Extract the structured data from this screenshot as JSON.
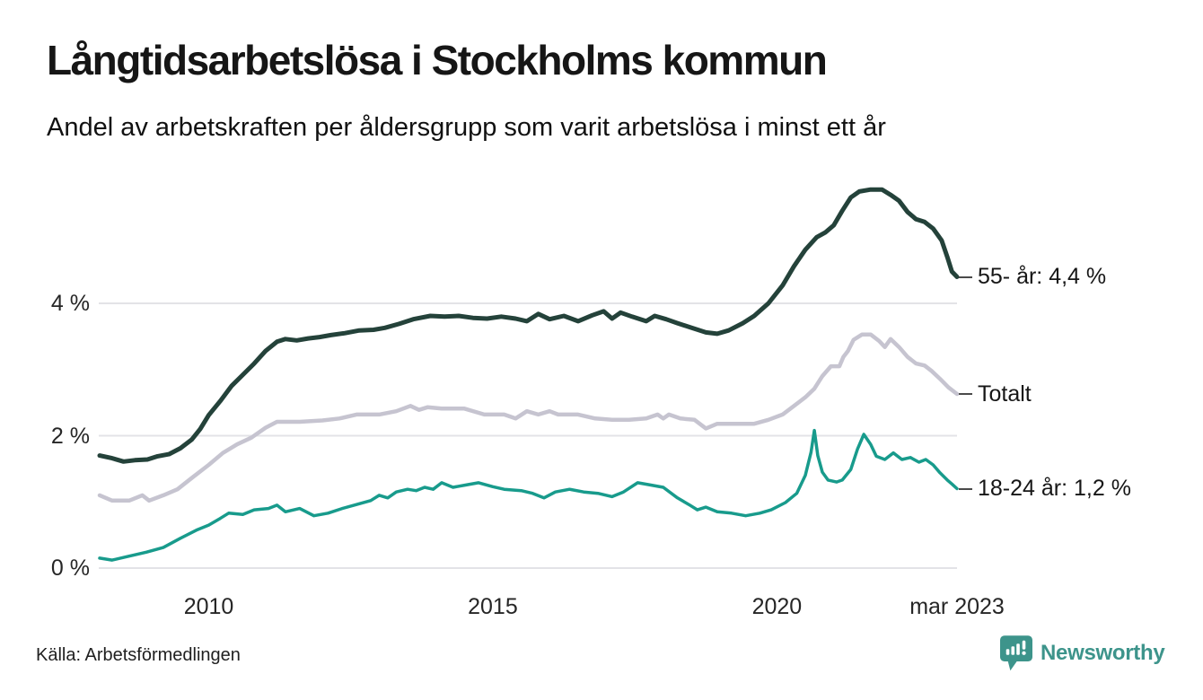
{
  "title": "Långtidsarbetslösa i Stockholms kommun",
  "subtitle": "Andel av arbetskraften per åldersgrupp som varit arbetslösa i minst ett år",
  "source": "Källa: Arbetsförmedlingen",
  "branding": {
    "name": "Newsworthy",
    "color": "#3d948b",
    "icon": "newsworthy-speech-bubble-bar-chart-icon"
  },
  "colors": {
    "age_55_plus": "#24423a",
    "total": "#c6c4d0",
    "age_18_24": "#189b8c",
    "gridline": "#e3e3e7",
    "background": "#ffffff"
  },
  "chart_data": {
    "type": "line",
    "title": "Långtidsarbetslösa i Stockholms kommun",
    "subtitle": "Andel av arbetskraften per åldersgrupp som varit arbetslösa i minst ett år",
    "x_unit": "year (monthly data)",
    "xlim": [
      2008.08,
      2023.17
    ],
    "ylim": [
      0,
      6.2
    ],
    "grid": "horizontal gridlines at y ticks only",
    "legend": "inline labels at right edge of lines",
    "y_ticks": [
      {
        "value": 4,
        "label": "4 %"
      },
      {
        "value": 2,
        "label": "2 %"
      },
      {
        "value": 0,
        "label": "0 %"
      }
    ],
    "x_ticks": [
      {
        "value": 2010,
        "label": "2010"
      },
      {
        "value": 2015,
        "label": "2015"
      },
      {
        "value": 2020,
        "label": "2020"
      },
      {
        "value": 2023.17,
        "label": "mar 2023"
      }
    ],
    "series": [
      {
        "name": "55- år",
        "slug": "55-ar",
        "end_label": "55- år: 4,4 %",
        "end_value_label": "4,4 %",
        "color": "#24423a",
        "points": [
          [
            2008.08,
            1.7
          ],
          [
            2008.3,
            1.66
          ],
          [
            2008.5,
            1.61
          ],
          [
            2008.7,
            1.63
          ],
          [
            2008.92,
            1.64
          ],
          [
            2009.1,
            1.69
          ],
          [
            2009.3,
            1.72
          ],
          [
            2009.5,
            1.81
          ],
          [
            2009.7,
            1.94
          ],
          [
            2009.85,
            2.1
          ],
          [
            2010.0,
            2.31
          ],
          [
            2010.2,
            2.52
          ],
          [
            2010.4,
            2.75
          ],
          [
            2010.6,
            2.92
          ],
          [
            2010.8,
            3.09
          ],
          [
            2011.0,
            3.28
          ],
          [
            2011.2,
            3.42
          ],
          [
            2011.35,
            3.46
          ],
          [
            2011.55,
            3.44
          ],
          [
            2011.75,
            3.47
          ],
          [
            2011.95,
            3.49
          ],
          [
            2012.15,
            3.52
          ],
          [
            2012.4,
            3.55
          ],
          [
            2012.65,
            3.59
          ],
          [
            2012.9,
            3.6
          ],
          [
            2013.1,
            3.63
          ],
          [
            2013.35,
            3.69
          ],
          [
            2013.6,
            3.76
          ],
          [
            2013.9,
            3.81
          ],
          [
            2014.15,
            3.8
          ],
          [
            2014.4,
            3.81
          ],
          [
            2014.65,
            3.78
          ],
          [
            2014.9,
            3.77
          ],
          [
            2015.15,
            3.8
          ],
          [
            2015.4,
            3.77
          ],
          [
            2015.6,
            3.73
          ],
          [
            2015.8,
            3.84
          ],
          [
            2016.0,
            3.76
          ],
          [
            2016.25,
            3.81
          ],
          [
            2016.5,
            3.73
          ],
          [
            2016.75,
            3.82
          ],
          [
            2016.95,
            3.88
          ],
          [
            2017.1,
            3.77
          ],
          [
            2017.25,
            3.86
          ],
          [
            2017.45,
            3.8
          ],
          [
            2017.7,
            3.73
          ],
          [
            2017.85,
            3.81
          ],
          [
            2018.05,
            3.76
          ],
          [
            2018.25,
            3.7
          ],
          [
            2018.5,
            3.63
          ],
          [
            2018.75,
            3.56
          ],
          [
            2018.95,
            3.54
          ],
          [
            2019.15,
            3.59
          ],
          [
            2019.4,
            3.7
          ],
          [
            2019.6,
            3.81
          ],
          [
            2019.85,
            4.0
          ],
          [
            2020.1,
            4.27
          ],
          [
            2020.3,
            4.56
          ],
          [
            2020.5,
            4.81
          ],
          [
            2020.7,
            5.0
          ],
          [
            2020.85,
            5.07
          ],
          [
            2021.0,
            5.18
          ],
          [
            2021.15,
            5.4
          ],
          [
            2021.3,
            5.6
          ],
          [
            2021.45,
            5.69
          ],
          [
            2021.65,
            5.72
          ],
          [
            2021.85,
            5.72
          ],
          [
            2022.0,
            5.64
          ],
          [
            2022.15,
            5.55
          ],
          [
            2022.3,
            5.38
          ],
          [
            2022.45,
            5.27
          ],
          [
            2022.6,
            5.23
          ],
          [
            2022.75,
            5.13
          ],
          [
            2022.9,
            4.95
          ],
          [
            2023.0,
            4.7
          ],
          [
            2023.08,
            4.48
          ],
          [
            2023.17,
            4.4
          ]
        ]
      },
      {
        "name": "Totalt",
        "slug": "totalt",
        "end_label": "Totalt",
        "end_value_label": "",
        "color": "#c6c4d0",
        "points": [
          [
            2008.08,
            1.1
          ],
          [
            2008.3,
            1.02
          ],
          [
            2008.6,
            1.02
          ],
          [
            2008.83,
            1.1
          ],
          [
            2008.95,
            1.02
          ],
          [
            2009.2,
            1.1
          ],
          [
            2009.45,
            1.19
          ],
          [
            2009.7,
            1.36
          ],
          [
            2010.0,
            1.56
          ],
          [
            2010.25,
            1.74
          ],
          [
            2010.5,
            1.87
          ],
          [
            2010.75,
            1.97
          ],
          [
            2011.0,
            2.12
          ],
          [
            2011.2,
            2.21
          ],
          [
            2011.6,
            2.21
          ],
          [
            2012.0,
            2.23
          ],
          [
            2012.3,
            2.26
          ],
          [
            2012.6,
            2.32
          ],
          [
            2013.0,
            2.32
          ],
          [
            2013.3,
            2.37
          ],
          [
            2013.55,
            2.45
          ],
          [
            2013.7,
            2.39
          ],
          [
            2013.85,
            2.43
          ],
          [
            2014.1,
            2.41
          ],
          [
            2014.5,
            2.41
          ],
          [
            2014.85,
            2.32
          ],
          [
            2015.2,
            2.32
          ],
          [
            2015.4,
            2.26
          ],
          [
            2015.6,
            2.37
          ],
          [
            2015.8,
            2.32
          ],
          [
            2016.0,
            2.37
          ],
          [
            2016.15,
            2.32
          ],
          [
            2016.5,
            2.32
          ],
          [
            2016.8,
            2.26
          ],
          [
            2017.1,
            2.24
          ],
          [
            2017.4,
            2.24
          ],
          [
            2017.7,
            2.26
          ],
          [
            2017.9,
            2.32
          ],
          [
            2018.0,
            2.26
          ],
          [
            2018.1,
            2.32
          ],
          [
            2018.3,
            2.26
          ],
          [
            2018.55,
            2.24
          ],
          [
            2018.75,
            2.11
          ],
          [
            2018.95,
            2.18
          ],
          [
            2019.3,
            2.18
          ],
          [
            2019.6,
            2.18
          ],
          [
            2019.85,
            2.24
          ],
          [
            2020.1,
            2.32
          ],
          [
            2020.3,
            2.45
          ],
          [
            2020.5,
            2.58
          ],
          [
            2020.66,
            2.71
          ],
          [
            2020.8,
            2.9
          ],
          [
            2020.95,
            3.05
          ],
          [
            2021.1,
            3.05
          ],
          [
            2021.17,
            3.19
          ],
          [
            2021.25,
            3.28
          ],
          [
            2021.35,
            3.45
          ],
          [
            2021.5,
            3.53
          ],
          [
            2021.65,
            3.53
          ],
          [
            2021.8,
            3.43
          ],
          [
            2021.9,
            3.34
          ],
          [
            2022.0,
            3.46
          ],
          [
            2022.15,
            3.34
          ],
          [
            2022.3,
            3.19
          ],
          [
            2022.45,
            3.09
          ],
          [
            2022.6,
            3.06
          ],
          [
            2022.72,
            2.98
          ],
          [
            2022.87,
            2.86
          ],
          [
            2023.02,
            2.73
          ],
          [
            2023.17,
            2.63
          ]
        ]
      },
      {
        "name": "18-24 år",
        "slug": "18-24-ar",
        "end_label": "18-24 år: 1,2 %",
        "end_value_label": "1,2 %",
        "color": "#189b8c",
        "points": [
          [
            2008.08,
            0.15
          ],
          [
            2008.3,
            0.12
          ],
          [
            2008.6,
            0.18
          ],
          [
            2008.9,
            0.24
          ],
          [
            2009.2,
            0.31
          ],
          [
            2009.5,
            0.45
          ],
          [
            2009.8,
            0.58
          ],
          [
            2010.0,
            0.65
          ],
          [
            2010.2,
            0.75
          ],
          [
            2010.35,
            0.83
          ],
          [
            2010.6,
            0.81
          ],
          [
            2010.8,
            0.88
          ],
          [
            2011.05,
            0.9
          ],
          [
            2011.2,
            0.95
          ],
          [
            2011.35,
            0.85
          ],
          [
            2011.6,
            0.9
          ],
          [
            2011.85,
            0.79
          ],
          [
            2012.1,
            0.83
          ],
          [
            2012.35,
            0.9
          ],
          [
            2012.6,
            0.96
          ],
          [
            2012.85,
            1.02
          ],
          [
            2013.0,
            1.1
          ],
          [
            2013.15,
            1.06
          ],
          [
            2013.3,
            1.15
          ],
          [
            2013.5,
            1.19
          ],
          [
            2013.65,
            1.17
          ],
          [
            2013.8,
            1.22
          ],
          [
            2013.95,
            1.19
          ],
          [
            2014.1,
            1.29
          ],
          [
            2014.3,
            1.22
          ],
          [
            2014.55,
            1.26
          ],
          [
            2014.75,
            1.29
          ],
          [
            2015.0,
            1.23
          ],
          [
            2015.2,
            1.19
          ],
          [
            2015.5,
            1.17
          ],
          [
            2015.7,
            1.13
          ],
          [
            2015.9,
            1.06
          ],
          [
            2016.1,
            1.15
          ],
          [
            2016.35,
            1.19
          ],
          [
            2016.6,
            1.15
          ],
          [
            2016.85,
            1.13
          ],
          [
            2017.1,
            1.08
          ],
          [
            2017.3,
            1.15
          ],
          [
            2017.55,
            1.29
          ],
          [
            2017.75,
            1.26
          ],
          [
            2018.0,
            1.22
          ],
          [
            2018.25,
            1.06
          ],
          [
            2018.45,
            0.96
          ],
          [
            2018.6,
            0.88
          ],
          [
            2018.75,
            0.92
          ],
          [
            2018.95,
            0.85
          ],
          [
            2019.2,
            0.83
          ],
          [
            2019.45,
            0.79
          ],
          [
            2019.7,
            0.83
          ],
          [
            2019.9,
            0.88
          ],
          [
            2020.15,
            0.99
          ],
          [
            2020.35,
            1.13
          ],
          [
            2020.5,
            1.4
          ],
          [
            2020.6,
            1.75
          ],
          [
            2020.66,
            2.08
          ],
          [
            2020.72,
            1.7
          ],
          [
            2020.8,
            1.45
          ],
          [
            2020.9,
            1.33
          ],
          [
            2021.05,
            1.3
          ],
          [
            2021.15,
            1.33
          ],
          [
            2021.3,
            1.49
          ],
          [
            2021.42,
            1.8
          ],
          [
            2021.53,
            2.02
          ],
          [
            2021.65,
            1.87
          ],
          [
            2021.75,
            1.69
          ],
          [
            2021.9,
            1.64
          ],
          [
            2022.05,
            1.74
          ],
          [
            2022.2,
            1.64
          ],
          [
            2022.35,
            1.67
          ],
          [
            2022.5,
            1.6
          ],
          [
            2022.62,
            1.64
          ],
          [
            2022.75,
            1.56
          ],
          [
            2022.87,
            1.44
          ],
          [
            2023.0,
            1.33
          ],
          [
            2023.08,
            1.27
          ],
          [
            2023.17,
            1.2
          ]
        ]
      }
    ]
  }
}
